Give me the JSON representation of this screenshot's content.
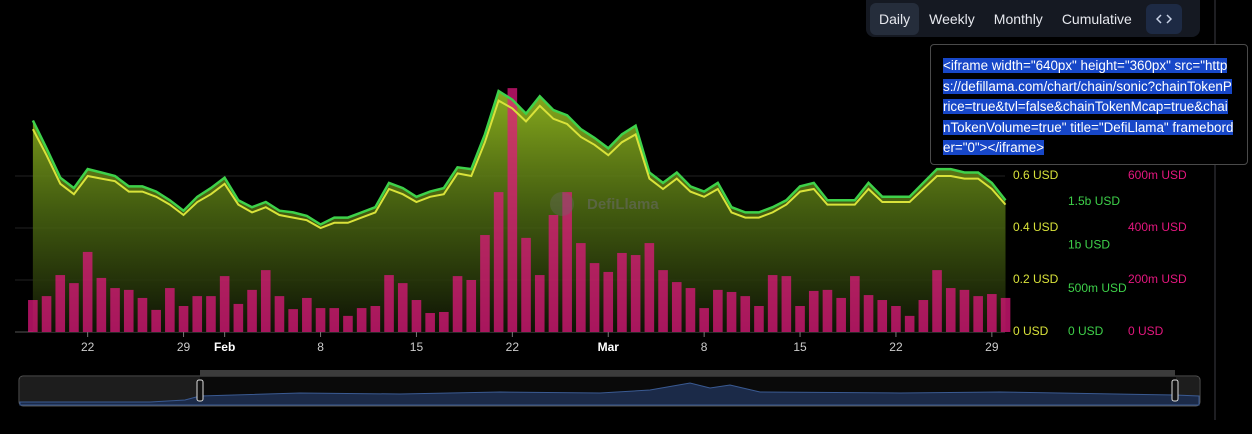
{
  "controls": {
    "buttons": [
      "Daily",
      "Weekly",
      "Monthly",
      "Cumulative"
    ]
  },
  "embed_code": "<iframe width=\"640px\" height=\"360px\" src=\"https://defillama.com/chart/chain/sonic?chainTokenPrice=true&tvl=false&chainTokenMcap=true&chainTokenVolume=true\" title=\"DefiLlama\" frameborder=\"0\"></iframe>",
  "chart_data": {
    "type": "combo",
    "watermark": "DefiLlama",
    "categories": [
      null,
      null,
      null,
      null,
      "22",
      null,
      null,
      null,
      null,
      null,
      null,
      "29",
      null,
      null,
      "Feb",
      null,
      null,
      null,
      null,
      null,
      null,
      "8",
      null,
      null,
      null,
      null,
      null,
      null,
      "15",
      null,
      null,
      null,
      null,
      null,
      null,
      "22",
      null,
      null,
      null,
      null,
      null,
      null,
      "Mar",
      null,
      null,
      null,
      null,
      null,
      null,
      "8",
      null,
      null,
      null,
      null,
      null,
      null,
      "15",
      null,
      null,
      null,
      null,
      null,
      null,
      "22",
      null,
      null,
      null,
      null,
      null,
      null,
      "29",
      null
    ],
    "ylim": [
      0,
      1
    ],
    "yticks": [
      {
        "value": 0,
        "label": "0 USD"
      },
      {
        "value": 0.2,
        "label": "0.2 USD"
      },
      {
        "value": 0.4,
        "label": "0.4 USD"
      },
      {
        "value": 0.6,
        "label": "0.6 USD"
      }
    ],
    "y2lim": [
      0,
      3000000000.0
    ],
    "y2ticks": [
      {
        "value": 0,
        "label": "0 USD"
      },
      {
        "value": 500000000.0,
        "label": "500m USD"
      },
      {
        "value": 1000000000.0,
        "label": "1b USD"
      },
      {
        "value": 1500000000.0,
        "label": "1.5b USD"
      }
    ],
    "y3lim": [
      0,
      1000000000.0
    ],
    "y3ticks": [
      {
        "value": 0,
        "label": "0 USD"
      },
      {
        "value": 200000000.0,
        "label": "200m USD"
      },
      {
        "value": 400000000.0,
        "label": "400m USD"
      },
      {
        "value": 600000000.0,
        "label": "600m USD"
      }
    ],
    "grid": true,
    "series": [
      {
        "type": "bar",
        "axis": "y3",
        "color": "#e5177f",
        "values": [
          123000000.0,
          138000000.0,
          219000000.0,
          188000000.0,
          308000000.0,
          208000000.0,
          169000000.0,
          162000000.0,
          131000000.0,
          85000000.0,
          169000000.0,
          100000000.0,
          138000000.0,
          138000000.0,
          215000000.0,
          108000000.0,
          162000000.0,
          238000000.0,
          138000000.0,
          88000000.0,
          131000000.0,
          92000000.0,
          92000000.0,
          62000000.0,
          92000000.0,
          100000000.0,
          219000000.0,
          188000000.0,
          123000000.0,
          73000000.0,
          77000000.0,
          215000000.0,
          200000000.0,
          373000000.0,
          538000000.0,
          938000000.0,
          362000000.0,
          219000000.0,
          450000000.0,
          538000000.0,
          342000000.0,
          265000000.0,
          231000000.0,
          304000000.0,
          296000000.0,
          342000000.0,
          238000000.0,
          192000000.0,
          169000000.0,
          92000000.0,
          162000000.0,
          154000000.0,
          138000000.0,
          100000000.0,
          219000000.0,
          215000000.0,
          100000000.0,
          158000000.0,
          162000000.0,
          131000000.0,
          215000000.0,
          142000000.0,
          123000000.0,
          100000000.0,
          62000000.0,
          123000000.0,
          238000000.0,
          169000000.0,
          162000000.0,
          138000000.0,
          146000000.0,
          131000000.0
        ]
      },
      {
        "type": "area",
        "axis": "y2",
        "color": "#3ed14a",
        "values": [
          2440000000.0,
          2120000000.0,
          1780000000.0,
          1660000000.0,
          1880000000.0,
          1840000000.0,
          1800000000.0,
          1680000000.0,
          1680000000.0,
          1620000000.0,
          1520000000.0,
          1400000000.0,
          1560000000.0,
          1660000000.0,
          1780000000.0,
          1520000000.0,
          1440000000.0,
          1500000000.0,
          1400000000.0,
          1380000000.0,
          1340000000.0,
          1240000000.0,
          1320000000.0,
          1320000000.0,
          1380000000.0,
          1440000000.0,
          1720000000.0,
          1660000000.0,
          1560000000.0,
          1620000000.0,
          1660000000.0,
          1900000000.0,
          1880000000.0,
          2280000000.0,
          2780000000.0,
          2680000000.0,
          2520000000.0,
          2720000000.0,
          2560000000.0,
          2500000000.0,
          2340000000.0,
          2240000000.0,
          2120000000.0,
          2280000000.0,
          2380000000.0,
          1840000000.0,
          1720000000.0,
          1840000000.0,
          1680000000.0,
          1620000000.0,
          1720000000.0,
          1440000000.0,
          1380000000.0,
          1380000000.0,
          1440000000.0,
          1520000000.0,
          1680000000.0,
          1720000000.0,
          1520000000.0,
          1520000000.0,
          1520000000.0,
          1720000000.0,
          1560000000.0,
          1560000000.0,
          1560000000.0,
          1720000000.0,
          1880000000.0,
          1880000000.0,
          1840000000.0,
          1840000000.0,
          1720000000.0,
          1520000000.0
        ]
      },
      {
        "type": "line",
        "axis": "y",
        "color": "#d9e23a",
        "values": [
          0.78,
          0.68,
          0.57,
          0.53,
          0.6,
          0.59,
          0.58,
          0.54,
          0.54,
          0.52,
          0.49,
          0.45,
          0.5,
          0.53,
          0.57,
          0.49,
          0.46,
          0.48,
          0.45,
          0.44,
          0.43,
          0.4,
          0.42,
          0.42,
          0.44,
          0.46,
          0.55,
          0.53,
          0.5,
          0.52,
          0.53,
          0.61,
          0.6,
          0.73,
          0.89,
          0.86,
          0.81,
          0.87,
          0.82,
          0.8,
          0.75,
          0.72,
          0.68,
          0.73,
          0.76,
          0.59,
          0.55,
          0.59,
          0.54,
          0.52,
          0.55,
          0.46,
          0.44,
          0.44,
          0.46,
          0.49,
          0.54,
          0.55,
          0.49,
          0.49,
          0.49,
          0.55,
          0.5,
          0.5,
          0.5,
          0.55,
          0.6,
          0.6,
          0.59,
          0.59,
          0.55,
          0.49
        ]
      }
    ]
  }
}
